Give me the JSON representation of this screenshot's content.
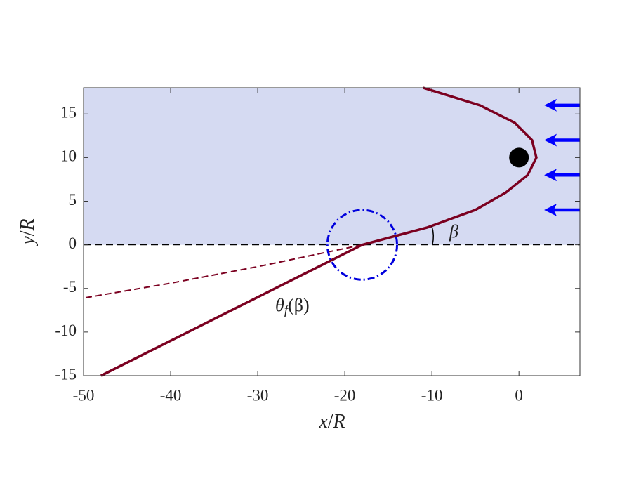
{
  "chart_data": {
    "type": "line",
    "xlabel": {
      "var": "x",
      "unit": "R"
    },
    "ylabel": {
      "var": "y",
      "unit": "R"
    },
    "xlim": [
      -50,
      7
    ],
    "ylim": [
      -15,
      18
    ],
    "xticks": [
      -50,
      -40,
      -30,
      -20,
      -10,
      0
    ],
    "yticks": [
      -15,
      -10,
      -5,
      0,
      5,
      10,
      15
    ],
    "shade_above": 0,
    "shade_color": "#d5daf2",
    "reference_y": 0,
    "curves": [
      {
        "x": [
          -11,
          -4.5,
          -0.5,
          1.5,
          2,
          1,
          -1.5,
          -5,
          -10.5,
          -18,
          -48
        ],
        "y": [
          18,
          16,
          14,
          12,
          10,
          8,
          6,
          4,
          2,
          0,
          -15
        ],
        "color": "#7b0020",
        "style": "solid"
      },
      {
        "x": [
          -18,
          -30,
          -40,
          -50
        ],
        "y": [
          0,
          -2.5,
          -4.4,
          -6.1
        ],
        "color": "#7b0020",
        "style": "dashed"
      }
    ],
    "circle": {
      "center": [
        -18,
        0
      ],
      "radius": 4,
      "color": "#0000dd"
    },
    "point": {
      "x": 0,
      "y": 10,
      "color": "#000000"
    },
    "arrows": {
      "y": [
        16,
        12,
        8,
        4
      ],
      "x_from": 7,
      "x_to": 3.5,
      "color": "#0000ff"
    },
    "angle_label": "β",
    "theta_label": {
      "symbol": "θ",
      "sub": "f",
      "arg": "(β)"
    }
  }
}
